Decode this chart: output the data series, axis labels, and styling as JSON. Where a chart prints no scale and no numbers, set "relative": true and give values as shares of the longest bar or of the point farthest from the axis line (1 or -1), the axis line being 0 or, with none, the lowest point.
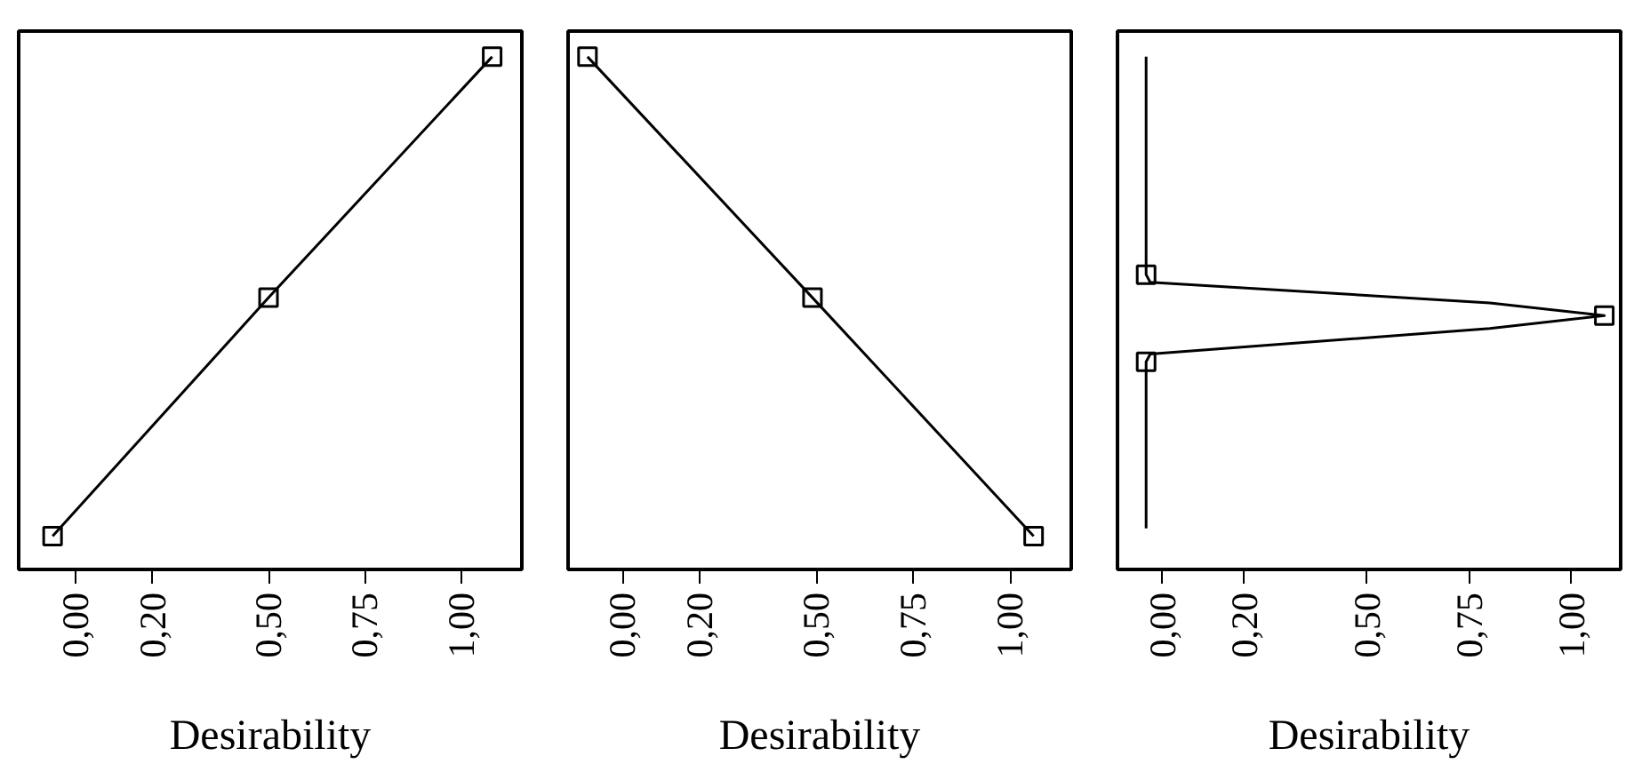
{
  "chart_data": [
    {
      "type": "line",
      "xlabel": "Desirability",
      "relative": true,
      "marker": "square",
      "grid": false,
      "tick_labels": "x",
      "xlim": [
        -0.148,
        1.157
      ],
      "xticks": [
        {
          "value": 0,
          "label": "0,00"
        },
        {
          "value": 0.2,
          "label": "0,20"
        },
        {
          "value": 0.5,
          "label": "0,50"
        },
        {
          "value": 0.75,
          "label": "0,75"
        },
        {
          "value": 1,
          "label": "1,00"
        }
      ],
      "series": [
        {
          "color": "#000000",
          "x": [
            -0.06,
            0.5,
            1.08
          ],
          "values": [
            0.065,
            0.53,
            1
          ]
        }
      ]
    },
    {
      "type": "line",
      "xlabel": "Desirability",
      "relative": true,
      "marker": "square",
      "grid": false,
      "tick_labels": "x",
      "xlim": [
        -0.14,
        1.157
      ],
      "xticks": [
        {
          "value": 0,
          "label": "0,00"
        },
        {
          "value": 0.2,
          "label": "0,20"
        },
        {
          "value": 0.5,
          "label": "0,50"
        },
        {
          "value": 0.75,
          "label": "0,75"
        },
        {
          "value": 1,
          "label": "1,00"
        }
      ],
      "series": [
        {
          "color": "#000000",
          "x": [
            -0.09,
            0.49,
            1.06
          ],
          "values": [
            1,
            0.53,
            0.065
          ]
        }
      ]
    },
    {
      "type": "line",
      "xlabel": "Desirability",
      "relative": true,
      "grid": false,
      "tick_labels": "x",
      "xlim": [
        -0.11,
        1.12
      ],
      "xticks": [
        {
          "value": 0,
          "label": "0,00"
        },
        {
          "value": 0.2,
          "label": "0,20"
        },
        {
          "value": 0.5,
          "label": "0,50"
        },
        {
          "value": 0.75,
          "label": "0,75"
        },
        {
          "value": 1,
          "label": "1,00"
        }
      ],
      "series": [
        {
          "color": "#000000",
          "marker": "none",
          "x": [
            -0.04,
            -0.04,
            -0.03,
            0.8,
            1.08,
            0.8,
            -0.03,
            -0.04,
            -0.04
          ],
          "values": [
            1,
            0.575,
            0.56,
            0.52,
            0.495,
            0.47,
            0.42,
            0.405,
            0.08
          ]
        },
        {
          "type": "scatter",
          "marker": "square",
          "color": "#000000",
          "x": [
            -0.04,
            1.08,
            -0.04
          ],
          "values": [
            0.575,
            0.495,
            0.405
          ]
        }
      ]
    }
  ]
}
